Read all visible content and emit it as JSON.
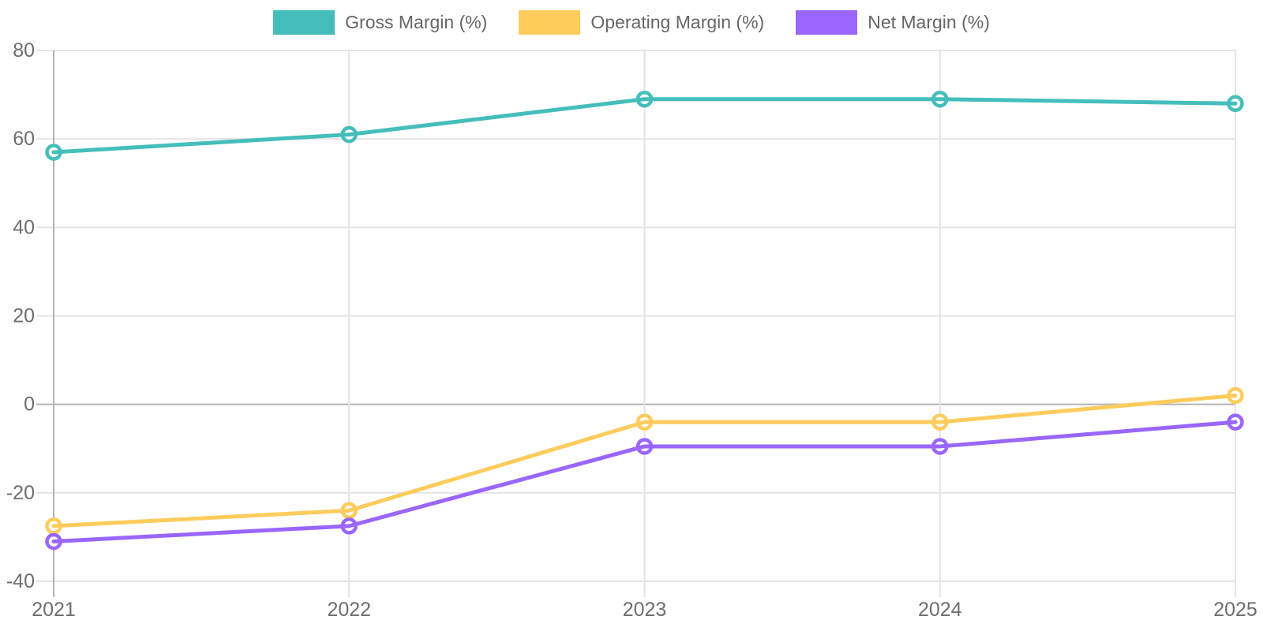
{
  "chart_data": {
    "type": "line",
    "x": [
      "2021",
      "2022",
      "2023",
      "2024",
      "2025"
    ],
    "series": [
      {
        "name": "Gross Margin (%)",
        "color": "#45BEBB",
        "values": [
          57,
          61,
          69,
          69,
          68
        ]
      },
      {
        "name": "Operating Margin (%)",
        "color": "#FECC5C",
        "values": [
          -27.5,
          -24,
          -4,
          -4,
          2
        ]
      },
      {
        "name": "Net Margin (%)",
        "color": "#9A66FD",
        "values": [
          -31,
          -27.5,
          -9.5,
          -9.5,
          -4
        ]
      }
    ],
    "ylim": [
      -40,
      80
    ],
    "yticks": [
      80,
      60,
      40,
      20,
      0,
      -20,
      -40
    ],
    "grid": true,
    "legend_position": "top",
    "layout": {
      "background": "#FFFFFF",
      "grid_color": "#E4E4E4",
      "axis_color": "#B3B3B3",
      "tick_label_color": "#6E6E6E",
      "legend_text_color": "#666666",
      "point_fill": "#FFFFFF"
    }
  }
}
